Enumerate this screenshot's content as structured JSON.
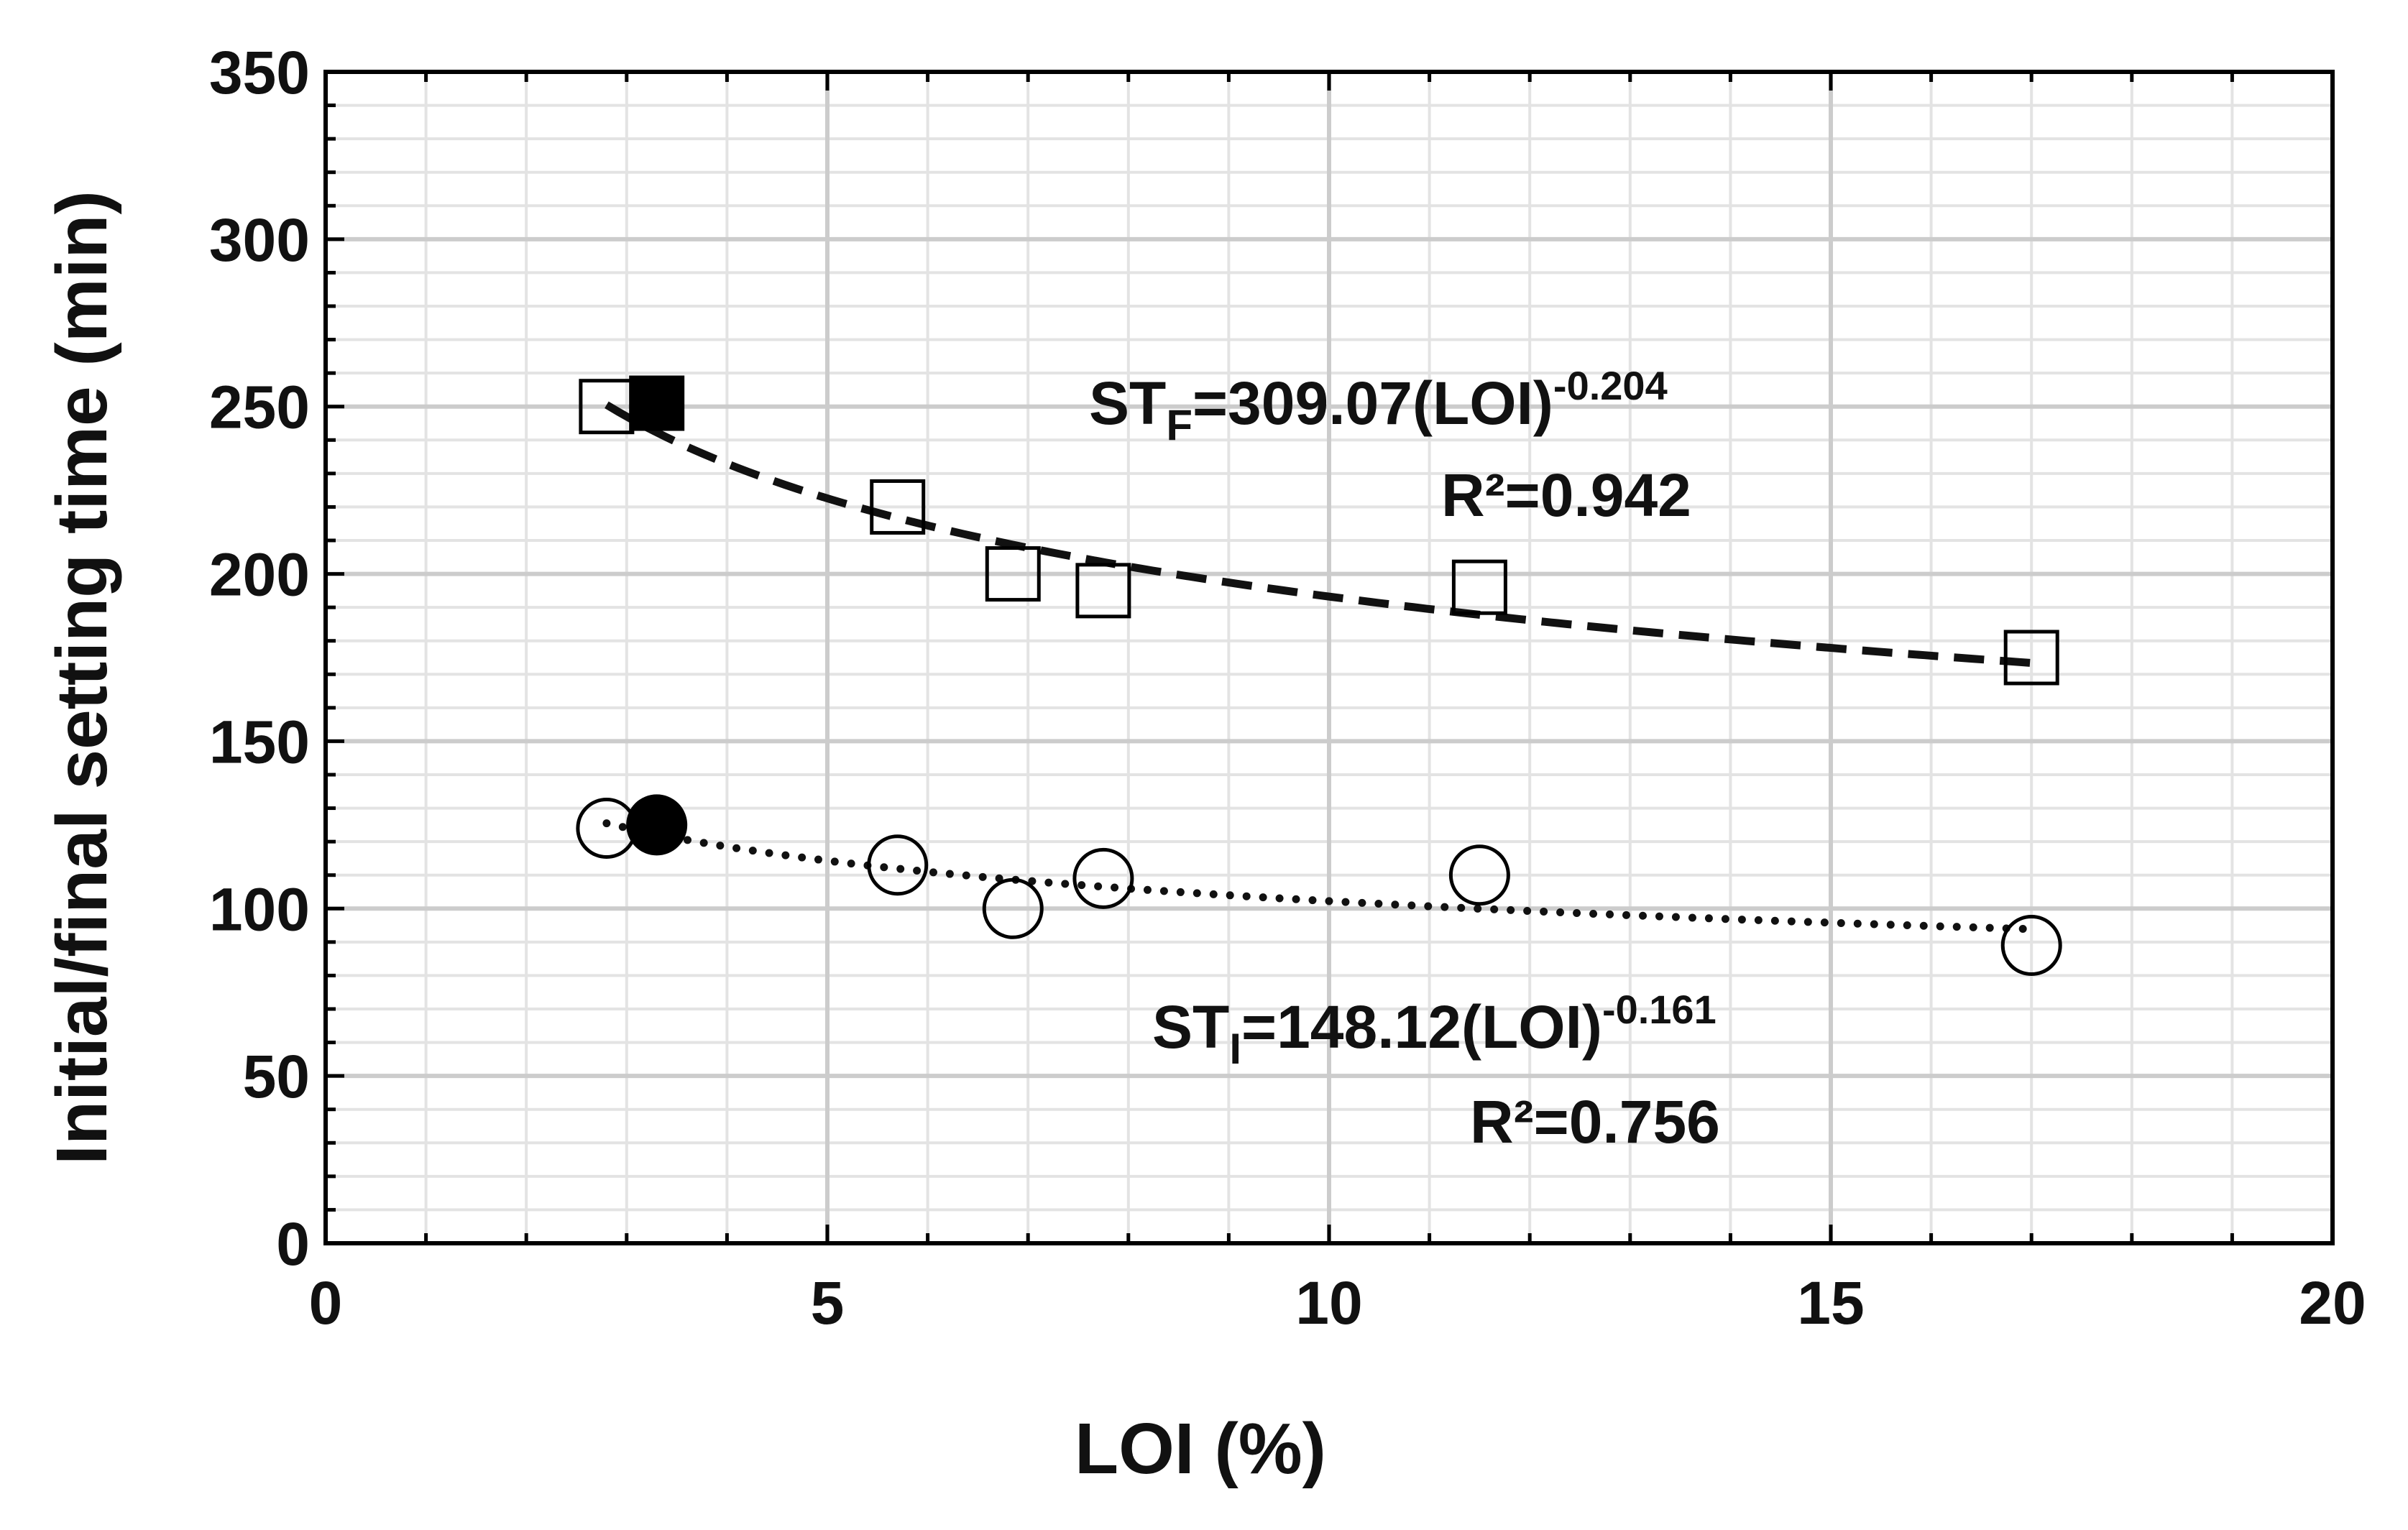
{
  "chart_data": {
    "type": "scatter",
    "title": "",
    "xlabel": "LOI (%)",
    "ylabel": "Initial/final setting time (min)",
    "xlim": [
      0,
      20
    ],
    "ylim": [
      0,
      350
    ],
    "xticks": [
      "0",
      "5",
      "10",
      "15",
      "20"
    ],
    "yticks": [
      "0",
      "50",
      "100",
      "150",
      "200",
      "250",
      "300",
      "350"
    ],
    "grid": true,
    "series": [
      {
        "marker": "open-square",
        "points": [
          [
            2.8,
            250
          ],
          [
            5.7,
            220
          ],
          [
            6.85,
            200
          ],
          [
            7.75,
            195
          ],
          [
            11.5,
            196
          ],
          [
            17.0,
            175
          ]
        ]
      },
      {
        "marker": "filled-square",
        "points": [
          [
            3.3,
            251
          ]
        ]
      },
      {
        "marker": "open-circle",
        "points": [
          [
            2.8,
            124
          ],
          [
            5.7,
            113
          ],
          [
            6.85,
            100
          ],
          [
            7.75,
            109
          ],
          [
            11.5,
            110
          ],
          [
            17.0,
            89
          ]
        ]
      },
      {
        "marker": "filled-circle",
        "points": [
          [
            3.3,
            125
          ]
        ]
      }
    ],
    "fits": [
      {
        "style": "dashed",
        "a": 309.07,
        "b": -0.204,
        "x_range": [
          2.8,
          17.0
        ]
      },
      {
        "style": "dotted",
        "a": 148.12,
        "b": -0.161,
        "x_range": [
          2.8,
          17.0
        ]
      }
    ],
    "annotations": {
      "final_eq": {
        "prefix": "ST",
        "sub": "F",
        "body": "=309.07(LOI)",
        "sup": "-0.204",
        "r2": "R²=0.942"
      },
      "initial_eq": {
        "prefix": "ST",
        "sub": "I",
        "body": "=148.12(LOI)",
        "sup": "-0.161",
        "r2": "R²=0.756"
      }
    },
    "colors": {
      "major_grid": "#cccccc",
      "minor_grid": "#e3e3e3",
      "axis": "#000000",
      "marker": "#000000"
    }
  }
}
